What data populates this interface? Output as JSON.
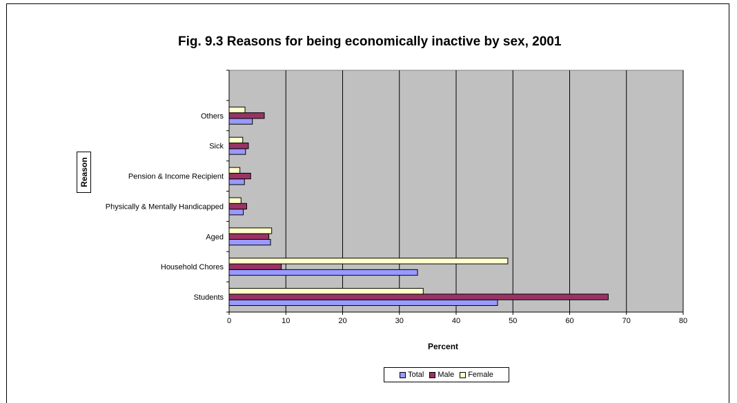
{
  "chart_data": {
    "type": "bar",
    "orientation": "horizontal",
    "title": "Fig. 9.3 Reasons for being economically inactive by sex, 2001",
    "xlabel": "Percent",
    "ylabel": "Reason",
    "xlim": [
      0,
      80
    ],
    "xticks": [
      0,
      10,
      20,
      30,
      40,
      50,
      60,
      70,
      80
    ],
    "grid": "vertical",
    "legend_position": "bottom",
    "categories": [
      "Students",
      "Household Chores",
      "Aged",
      "Physically & Mentally Handicapped",
      "Pension & Income Recipient",
      "Sick",
      "Others"
    ],
    "series": [
      {
        "name": "Total",
        "color": "#9999ff",
        "values": [
          47.3,
          33.2,
          7.3,
          2.5,
          2.7,
          2.9,
          4.1
        ]
      },
      {
        "name": "Male",
        "color": "#993366",
        "values": [
          66.8,
          9.2,
          7.0,
          3.1,
          3.8,
          3.4,
          6.2
        ]
      },
      {
        "name": "Female",
        "color": "#ffffcc",
        "values": [
          34.2,
          49.1,
          7.5,
          2.1,
          1.9,
          2.4,
          2.8
        ]
      }
    ],
    "plot_background": "#c0c0c0"
  }
}
